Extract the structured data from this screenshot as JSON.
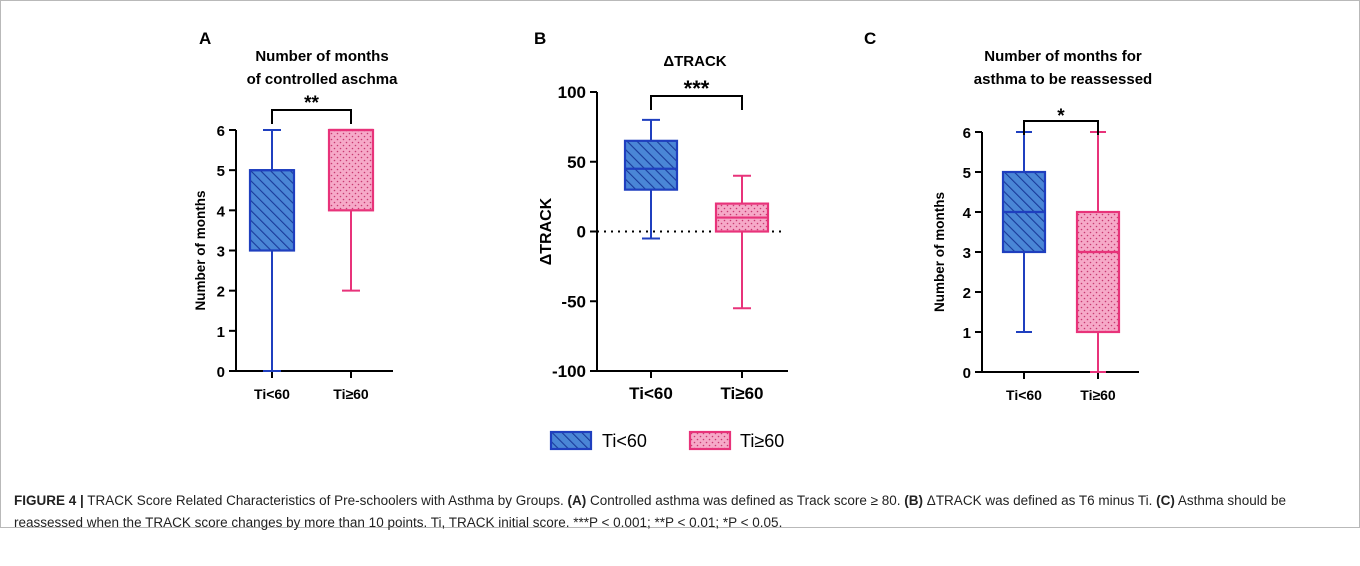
{
  "chart_data": [
    {
      "type": "box",
      "panel_label": "A",
      "title": [
        "Number of months",
        "of controlled aschma"
      ],
      "ylabel": "Number of months",
      "xlabel": "",
      "ylim": [
        0,
        6
      ],
      "yticks": [
        "0",
        "1",
        "2",
        "3",
        "4",
        "5",
        "6"
      ],
      "categories": [
        "Ti<60",
        "Ti≥60"
      ],
      "boxes": [
        {
          "name": "Ti<60",
          "min": 0,
          "q1": 3,
          "median": 5,
          "q3": 5,
          "max": 6
        },
        {
          "name": "Ti≥60",
          "min": 2,
          "q1": 4,
          "median": 6,
          "q3": 6,
          "max": 6
        }
      ],
      "significance": "**"
    },
    {
      "type": "box",
      "panel_label": "B",
      "title": [
        "ΔTRACK"
      ],
      "ylabel": "ΔTRACK",
      "xlabel": "",
      "ylim": [
        -100,
        100
      ],
      "yticks": [
        "-100",
        "-50",
        "0",
        "50",
        "100"
      ],
      "reference_line": 0,
      "categories": [
        "Ti<60",
        "Ti≥60"
      ],
      "boxes": [
        {
          "name": "Ti<60",
          "min": -5,
          "q1": 30,
          "median": 45,
          "q3": 65,
          "max": 80
        },
        {
          "name": "Ti≥60",
          "min": -55,
          "q1": 0,
          "median": 10,
          "q3": 20,
          "max": 40
        }
      ],
      "significance": "***"
    },
    {
      "type": "box",
      "panel_label": "C",
      "title": [
        "Number of months for",
        "asthma to be reassessed"
      ],
      "ylabel": "Number of months",
      "xlabel": "",
      "ylim": [
        0,
        6
      ],
      "yticks": [
        "0",
        "1",
        "2",
        "3",
        "4",
        "5",
        "6"
      ],
      "categories": [
        "Ti<60",
        "Ti≥60"
      ],
      "boxes": [
        {
          "name": "Ti<60",
          "min": 1,
          "q1": 3,
          "median": 4,
          "q3": 5,
          "max": 6
        },
        {
          "name": "Ti≥60",
          "min": 0,
          "q1": 1,
          "median": 3,
          "q3": 4,
          "max": 6
        }
      ],
      "significance": "*"
    }
  ],
  "legend": {
    "items": [
      {
        "label": "Ti<60",
        "color": "#1f3fbf",
        "fill": "#4a86d6",
        "pattern": "hatch"
      },
      {
        "label": "Ti≥60",
        "color": "#e8337a",
        "fill": "#f6a9c8",
        "pattern": "dots"
      }
    ]
  },
  "caption": {
    "figure_label": "FIGURE 4 |",
    "text": " TRACK Score Related Characteristics of Pre-schoolers with Asthma by Groups. ",
    "a_label": "(A)",
    "a_text": " Controlled asthma was defined as Track score ≥ 80. ",
    "b_label": "(B)",
    "b_text": " ΔTRACK was defined as T6 minus Ti. ",
    "c_label": "(C)",
    "c_text": " Asthma should be reassessed when the TRACK score changes by more than 10 points. Ti, TRACK initial score. ***P < 0.001; **P < 0.01; *P < 0.05."
  },
  "colors": {
    "ti_lt_60_edge": "#1f3fbf",
    "ti_lt_60_fill": "#4a86d6",
    "ti_ge_60_edge": "#e8337a",
    "ti_ge_60_fill": "#f6a9c8"
  }
}
